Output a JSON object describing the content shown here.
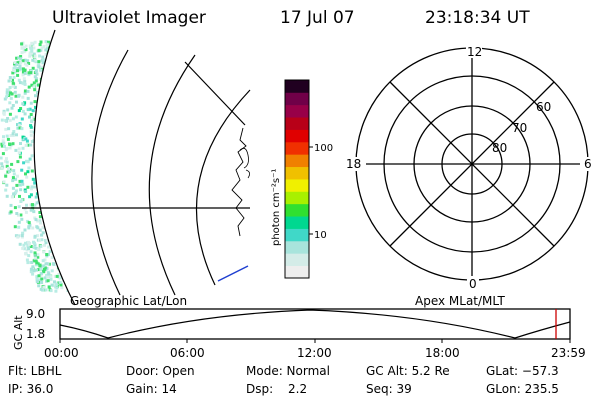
{
  "header": {
    "instrument": "Ultraviolet Imager",
    "date": "17 Jul 07",
    "time": "23:18:34 UT"
  },
  "colorbar": {
    "unit_label": "photon cm⁻²s⁻¹",
    "ticks": [
      "100",
      "10"
    ],
    "colors": [
      "#eeeeee",
      "#d4ece8",
      "#a8e4dc",
      "#40d8c8",
      "#00d890",
      "#30e030",
      "#a8f000",
      "#f0f000",
      "#f0c000",
      "#f08000",
      "#f03000",
      "#e00000",
      "#b80018",
      "#980048",
      "#700048",
      "#200020"
    ]
  },
  "polar": {
    "mlt_labels": [
      "12",
      "18",
      "6",
      "0"
    ],
    "lat_labels": [
      "60",
      "70",
      "80"
    ]
  },
  "timeline": {
    "left_label": "Geographic Lat/Lon",
    "right_label": "Apex MLat/MLT",
    "y_axis_label": "GC Alt",
    "y_ticks": [
      "9.0",
      "1.8"
    ],
    "x_ticks": [
      "00:00",
      "06:00",
      "12:00",
      "18:00",
      "23:59"
    ],
    "marker_color": "#cc0000"
  },
  "footer": {
    "filter": "Flt: LBHL",
    "ip": "IP: 36.0",
    "door": "Door: Open",
    "gain": "Gain: 14",
    "mode": "Mode: Normal",
    "dsp_label": "Dsp:",
    "dsp_value": "2.2",
    "gc_alt": "GC Alt: 5.2 Re",
    "seq": "Seq: 39",
    "glat": "GLat: −57.3",
    "glon": "GLon: 235.5"
  }
}
